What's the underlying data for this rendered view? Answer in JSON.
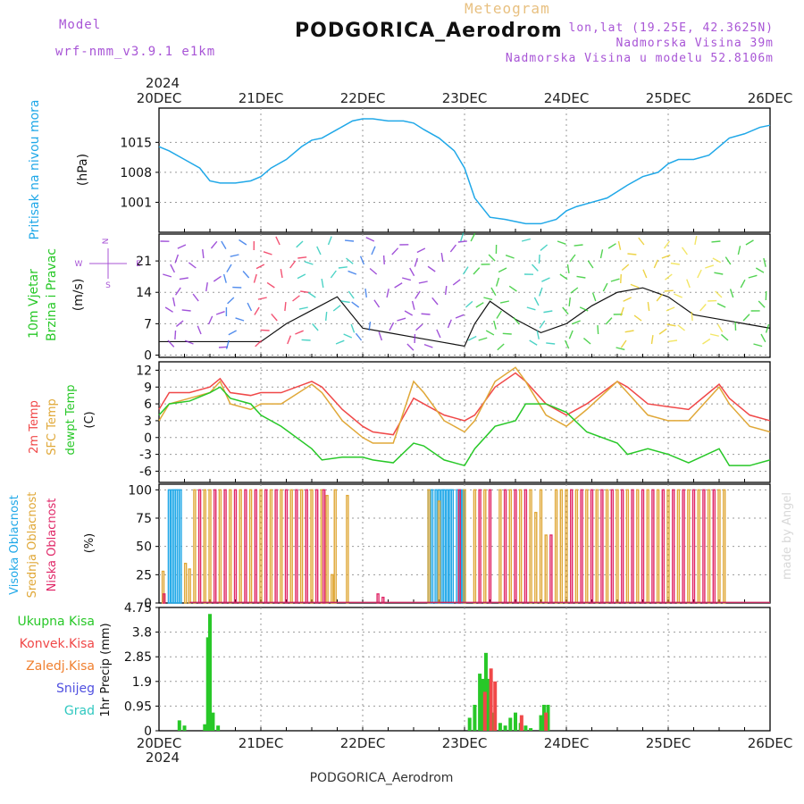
{
  "header": {
    "model_label": "Model",
    "model_name": "wrf-nmm_v3.9.1 e1km",
    "product": "Meteogram",
    "station": "PODGORICA_Aerodrom",
    "coords": "lon,lat (19.25E, 42.3625N)",
    "elevation": "Nadmorska Visina 39m",
    "model_elevation": "Nadmorska Visina u modelu 52.8106m",
    "footer": "PODGORICA_Aerodrom",
    "credit": "made by Angel"
  },
  "time_axis": {
    "year": "2024",
    "labels": [
      "20DEC",
      "21DEC",
      "22DEC",
      "23DEC",
      "24DEC",
      "25DEC",
      "26DEC"
    ]
  },
  "colors": {
    "pressure": "#20a8e8",
    "temp2m": "#f04848",
    "sfc": "#e0a838",
    "dewpt": "#28c828",
    "high_cloud": "#20a8e8",
    "mid_cloud": "#e0a838",
    "low_cloud": "#e02868",
    "total_precip": "#28c828",
    "conv_precip": "#f04848",
    "frozen": "#f08030",
    "snow": "#5050e0",
    "hail": "#30c8c0"
  },
  "chart_data": [
    {
      "type": "line",
      "panel": "pressure",
      "ylabels": [
        "Pritisak na nivou mora",
        "(hPa)"
      ],
      "ylim": [
        994,
        1023
      ],
      "yticks": [
        "1015",
        "1008",
        "1001"
      ],
      "grid": true,
      "series": [
        {
          "x": [
            0,
            0.1,
            0.25,
            0.4,
            0.5,
            0.6,
            0.75,
            0.9,
            1.0,
            1.1,
            1.25,
            1.4,
            1.5,
            1.6,
            1.75,
            1.9,
            2.0,
            2.1,
            2.25,
            2.4,
            2.5,
            2.6,
            2.75,
            2.9,
            3.0,
            3.1,
            3.25,
            3.4,
            3.5,
            3.6,
            3.75,
            3.9,
            4.0,
            4.1,
            4.25,
            4.4,
            4.5,
            4.6,
            4.75,
            4.9,
            5.0,
            5.1,
            5.25,
            5.4,
            5.5,
            5.6,
            5.75,
            5.9,
            6.0
          ],
          "values": [
            1014,
            1013,
            1011,
            1009,
            1006,
            1005.5,
            1005.5,
            1006,
            1007,
            1009,
            1011,
            1014,
            1015.5,
            1016,
            1018,
            1020,
            1020.5,
            1020.5,
            1020,
            1020,
            1019.5,
            1018,
            1016,
            1013,
            1009,
            1002,
            997.5,
            997,
            996.5,
            996,
            996,
            997,
            999,
            1000,
            1001,
            1002,
            1003.5,
            1005,
            1007,
            1008,
            1010,
            1011,
            1011,
            1012,
            1014,
            1016,
            1017,
            1018.5,
            1019
          ]
        }
      ]
    },
    {
      "type": "line",
      "panel": "wind",
      "ylabels": [
        "10m Vjetar",
        "Brzina i Pravac",
        "(m/s)"
      ],
      "compass": [
        "N",
        "W",
        "E",
        "S"
      ],
      "ylim": [
        -0.5,
        27
      ],
      "yticks": [
        "21",
        "14",
        "7",
        "0"
      ],
      "grid": true,
      "series": [
        {
          "name": "speed",
          "x": [
            0,
            0.25,
            0.5,
            0.75,
            1.0,
            1.25,
            1.5,
            1.75,
            2.0,
            2.25,
            2.5,
            2.75,
            3.0,
            3.1,
            3.25,
            3.5,
            3.75,
            4.0,
            4.25,
            4.5,
            4.75,
            5.0,
            5.25,
            5.5,
            5.75,
            6.0
          ],
          "values": [
            3,
            3,
            3,
            3,
            3,
            7,
            10,
            13,
            6,
            5,
            4,
            3,
            2,
            7,
            12,
            8,
            5,
            7,
            11,
            14,
            15,
            13,
            9,
            8,
            7,
            6
          ]
        }
      ]
    },
    {
      "type": "line",
      "panel": "temperature",
      "ylabels": [
        "2m Temp",
        "SFC Temp",
        "dewpt Temp",
        "(C)"
      ],
      "ylim": [
        -8,
        13.5
      ],
      "yticks": [
        "12",
        "9",
        "6",
        "3",
        "0",
        "-3",
        "-6"
      ],
      "grid": true,
      "series": [
        {
          "name": "2m Temp",
          "x": [
            0,
            0.1,
            0.3,
            0.5,
            0.6,
            0.7,
            0.9,
            1.0,
            1.2,
            1.5,
            1.6,
            1.8,
            2.0,
            2.1,
            2.3,
            2.5,
            2.6,
            2.8,
            3.0,
            3.1,
            3.3,
            3.5,
            3.6,
            3.8,
            4.0,
            4.2,
            4.5,
            4.6,
            4.8,
            5.0,
            5.2,
            5.5,
            5.6,
            5.8,
            6.0
          ],
          "values": [
            5,
            8,
            8,
            9,
            10.5,
            8,
            7.5,
            8,
            8,
            10,
            9,
            5,
            2,
            1,
            0.5,
            7,
            6,
            4,
            3,
            4,
            9,
            11.5,
            10,
            6,
            4,
            6,
            10,
            9,
            6,
            5.5,
            5,
            9.5,
            7,
            4,
            3
          ]
        },
        {
          "name": "SFC Temp",
          "x": [
            0,
            0.1,
            0.3,
            0.5,
            0.6,
            0.7,
            0.9,
            1.0,
            1.2,
            1.5,
            1.6,
            1.8,
            2.0,
            2.1,
            2.3,
            2.5,
            2.6,
            2.8,
            3.0,
            3.1,
            3.3,
            3.5,
            3.6,
            3.8,
            4.0,
            4.2,
            4.5,
            4.6,
            4.8,
            5.0,
            5.2,
            5.5,
            5.6,
            5.8,
            6.0
          ],
          "values": [
            3,
            6,
            7,
            8,
            10,
            6,
            5,
            6,
            6,
            9.5,
            8,
            3,
            0,
            -1,
            -1,
            10,
            8,
            3,
            1,
            3,
            10,
            12.5,
            10,
            4,
            2,
            5,
            10,
            8,
            4,
            3,
            3,
            9,
            6,
            2,
            1
          ]
        },
        {
          "name": "dewpt Temp",
          "x": [
            0,
            0.1,
            0.3,
            0.5,
            0.6,
            0.7,
            0.9,
            1.0,
            1.2,
            1.5,
            1.6,
            1.8,
            2.0,
            2.1,
            2.3,
            2.5,
            2.6,
            2.8,
            3.0,
            3.1,
            3.3,
            3.5,
            3.6,
            3.8,
            4.0,
            4.2,
            4.5,
            4.6,
            4.8,
            5.0,
            5.2,
            5.5,
            5.6,
            5.8,
            6.0
          ],
          "values": [
            4,
            6,
            6.5,
            8,
            9,
            7,
            6,
            4,
            2,
            -2,
            -4,
            -3.5,
            -3.5,
            -4,
            -4.5,
            -1,
            -1.5,
            -4,
            -5,
            -2,
            2,
            3,
            6,
            6,
            4.5,
            1,
            -1,
            -3,
            -2,
            -3,
            -4.5,
            -2,
            -5,
            -5,
            -4
          ]
        }
      ]
    },
    {
      "type": "bar",
      "panel": "cloud",
      "ylabels": [
        "Visoka Oblacnost",
        "Srednja Oblacnost",
        "Niska Oblacnost",
        "(%)"
      ],
      "ylim": [
        0,
        105
      ],
      "yticks": [
        "100",
        "75",
        "50",
        "25",
        "0"
      ],
      "grid": true,
      "series": [
        {
          "name": "Visoka Oblacnost",
          "x": [
            0.1,
            0.13,
            0.15,
            0.17,
            0.19,
            0.21,
            2.65,
            2.68,
            2.72,
            2.75,
            2.78,
            2.8,
            2.83,
            2.86,
            2.88,
            2.93,
            2.96,
            2.99
          ],
          "values": [
            100,
            100,
            100,
            100,
            100,
            100,
            100,
            100,
            100,
            100,
            100,
            100,
            100,
            100,
            100,
            100,
            100,
            100
          ]
        },
        {
          "name": "Srednja Oblacnost",
          "x": [
            0.04,
            0.26,
            0.3,
            0.35,
            0.45,
            0.5,
            0.6,
            0.7,
            0.8,
            0.9,
            1.0,
            1.1,
            1.2,
            1.3,
            1.4,
            1.5,
            1.6,
            1.65,
            1.7,
            1.73,
            1.85,
            2.65,
            2.75,
            3.0,
            3.1,
            3.2,
            3.35,
            3.45,
            3.55,
            3.65,
            3.7,
            3.75,
            3.8,
            3.9,
            3.95,
            4.0,
            4.1,
            4.2,
            4.3,
            4.4,
            4.5,
            4.6,
            4.7,
            4.8,
            4.9,
            5.0,
            5.1,
            5.2,
            5.3,
            5.4,
            5.5,
            5.55
          ],
          "values": [
            28,
            35,
            30,
            100,
            100,
            100,
            100,
            100,
            100,
            100,
            100,
            100,
            100,
            100,
            100,
            100,
            100,
            95,
            25,
            100,
            95,
            100,
            90,
            100,
            100,
            100,
            100,
            100,
            100,
            100,
            80,
            100,
            60,
            100,
            100,
            100,
            100,
            100,
            100,
            100,
            100,
            100,
            100,
            100,
            100,
            100,
            100,
            100,
            100,
            100,
            100,
            100
          ]
        },
        {
          "name": "Niska Oblacnost",
          "x": [
            0.05,
            0.4,
            0.55,
            0.65,
            0.75,
            0.85,
            0.95,
            1.05,
            1.15,
            1.25,
            1.35,
            1.45,
            1.55,
            1.62,
            2.15,
            2.2,
            2.95,
            3.15,
            3.25,
            3.4,
            3.5,
            3.6,
            3.85,
            4.05,
            4.15,
            4.25,
            4.35,
            4.45,
            4.55,
            4.65,
            4.75,
            4.85,
            4.95,
            5.05,
            5.15,
            5.25,
            5.35,
            5.45
          ],
          "values": [
            8,
            100,
            100,
            100,
            100,
            100,
            100,
            100,
            100,
            100,
            100,
            100,
            100,
            100,
            8,
            5,
            100,
            100,
            100,
            100,
            100,
            100,
            60,
            100,
            100,
            100,
            100,
            100,
            100,
            100,
            100,
            100,
            100,
            100,
            100,
            100,
            100,
            100
          ]
        }
      ]
    },
    {
      "type": "bar",
      "panel": "precip",
      "ylabels": [
        "1hr Precip (mm)"
      ],
      "legend": [
        "Ukupna Kisa",
        "Konvek.Kisa",
        "Zaledj.Kisa",
        "Snijeg",
        "Grad"
      ],
      "ylim": [
        0,
        4.75
      ],
      "yticks": [
        "4.75",
        "3.8",
        "2.85",
        "1.9",
        "0.95",
        "0"
      ],
      "grid": true,
      "series": [
        {
          "name": "Ukupna Kisa",
          "x": [
            0.2,
            0.25,
            0.45,
            0.48,
            0.5,
            0.53,
            0.58,
            3.05,
            3.1,
            3.15,
            3.18,
            3.21,
            3.24,
            3.28,
            3.35,
            3.4,
            3.45,
            3.5,
            3.55,
            3.6,
            3.65,
            3.75,
            3.78,
            3.82
          ],
          "values": [
            0.4,
            0.2,
            0.25,
            3.6,
            4.5,
            0.7,
            0.2,
            0.5,
            1.0,
            2.2,
            2.0,
            3.0,
            2.0,
            0.7,
            0.3,
            0.2,
            0.5,
            0.7,
            0.3,
            0.2,
            0.1,
            0.6,
            1.0,
            1.0
          ]
        },
        {
          "name": "Konvek.Kisa",
          "x": [
            3.2,
            3.26,
            3.3,
            3.56,
            3.8
          ],
          "values": [
            1.5,
            2.4,
            1.9,
            0.6,
            0.7
          ]
        }
      ]
    }
  ]
}
